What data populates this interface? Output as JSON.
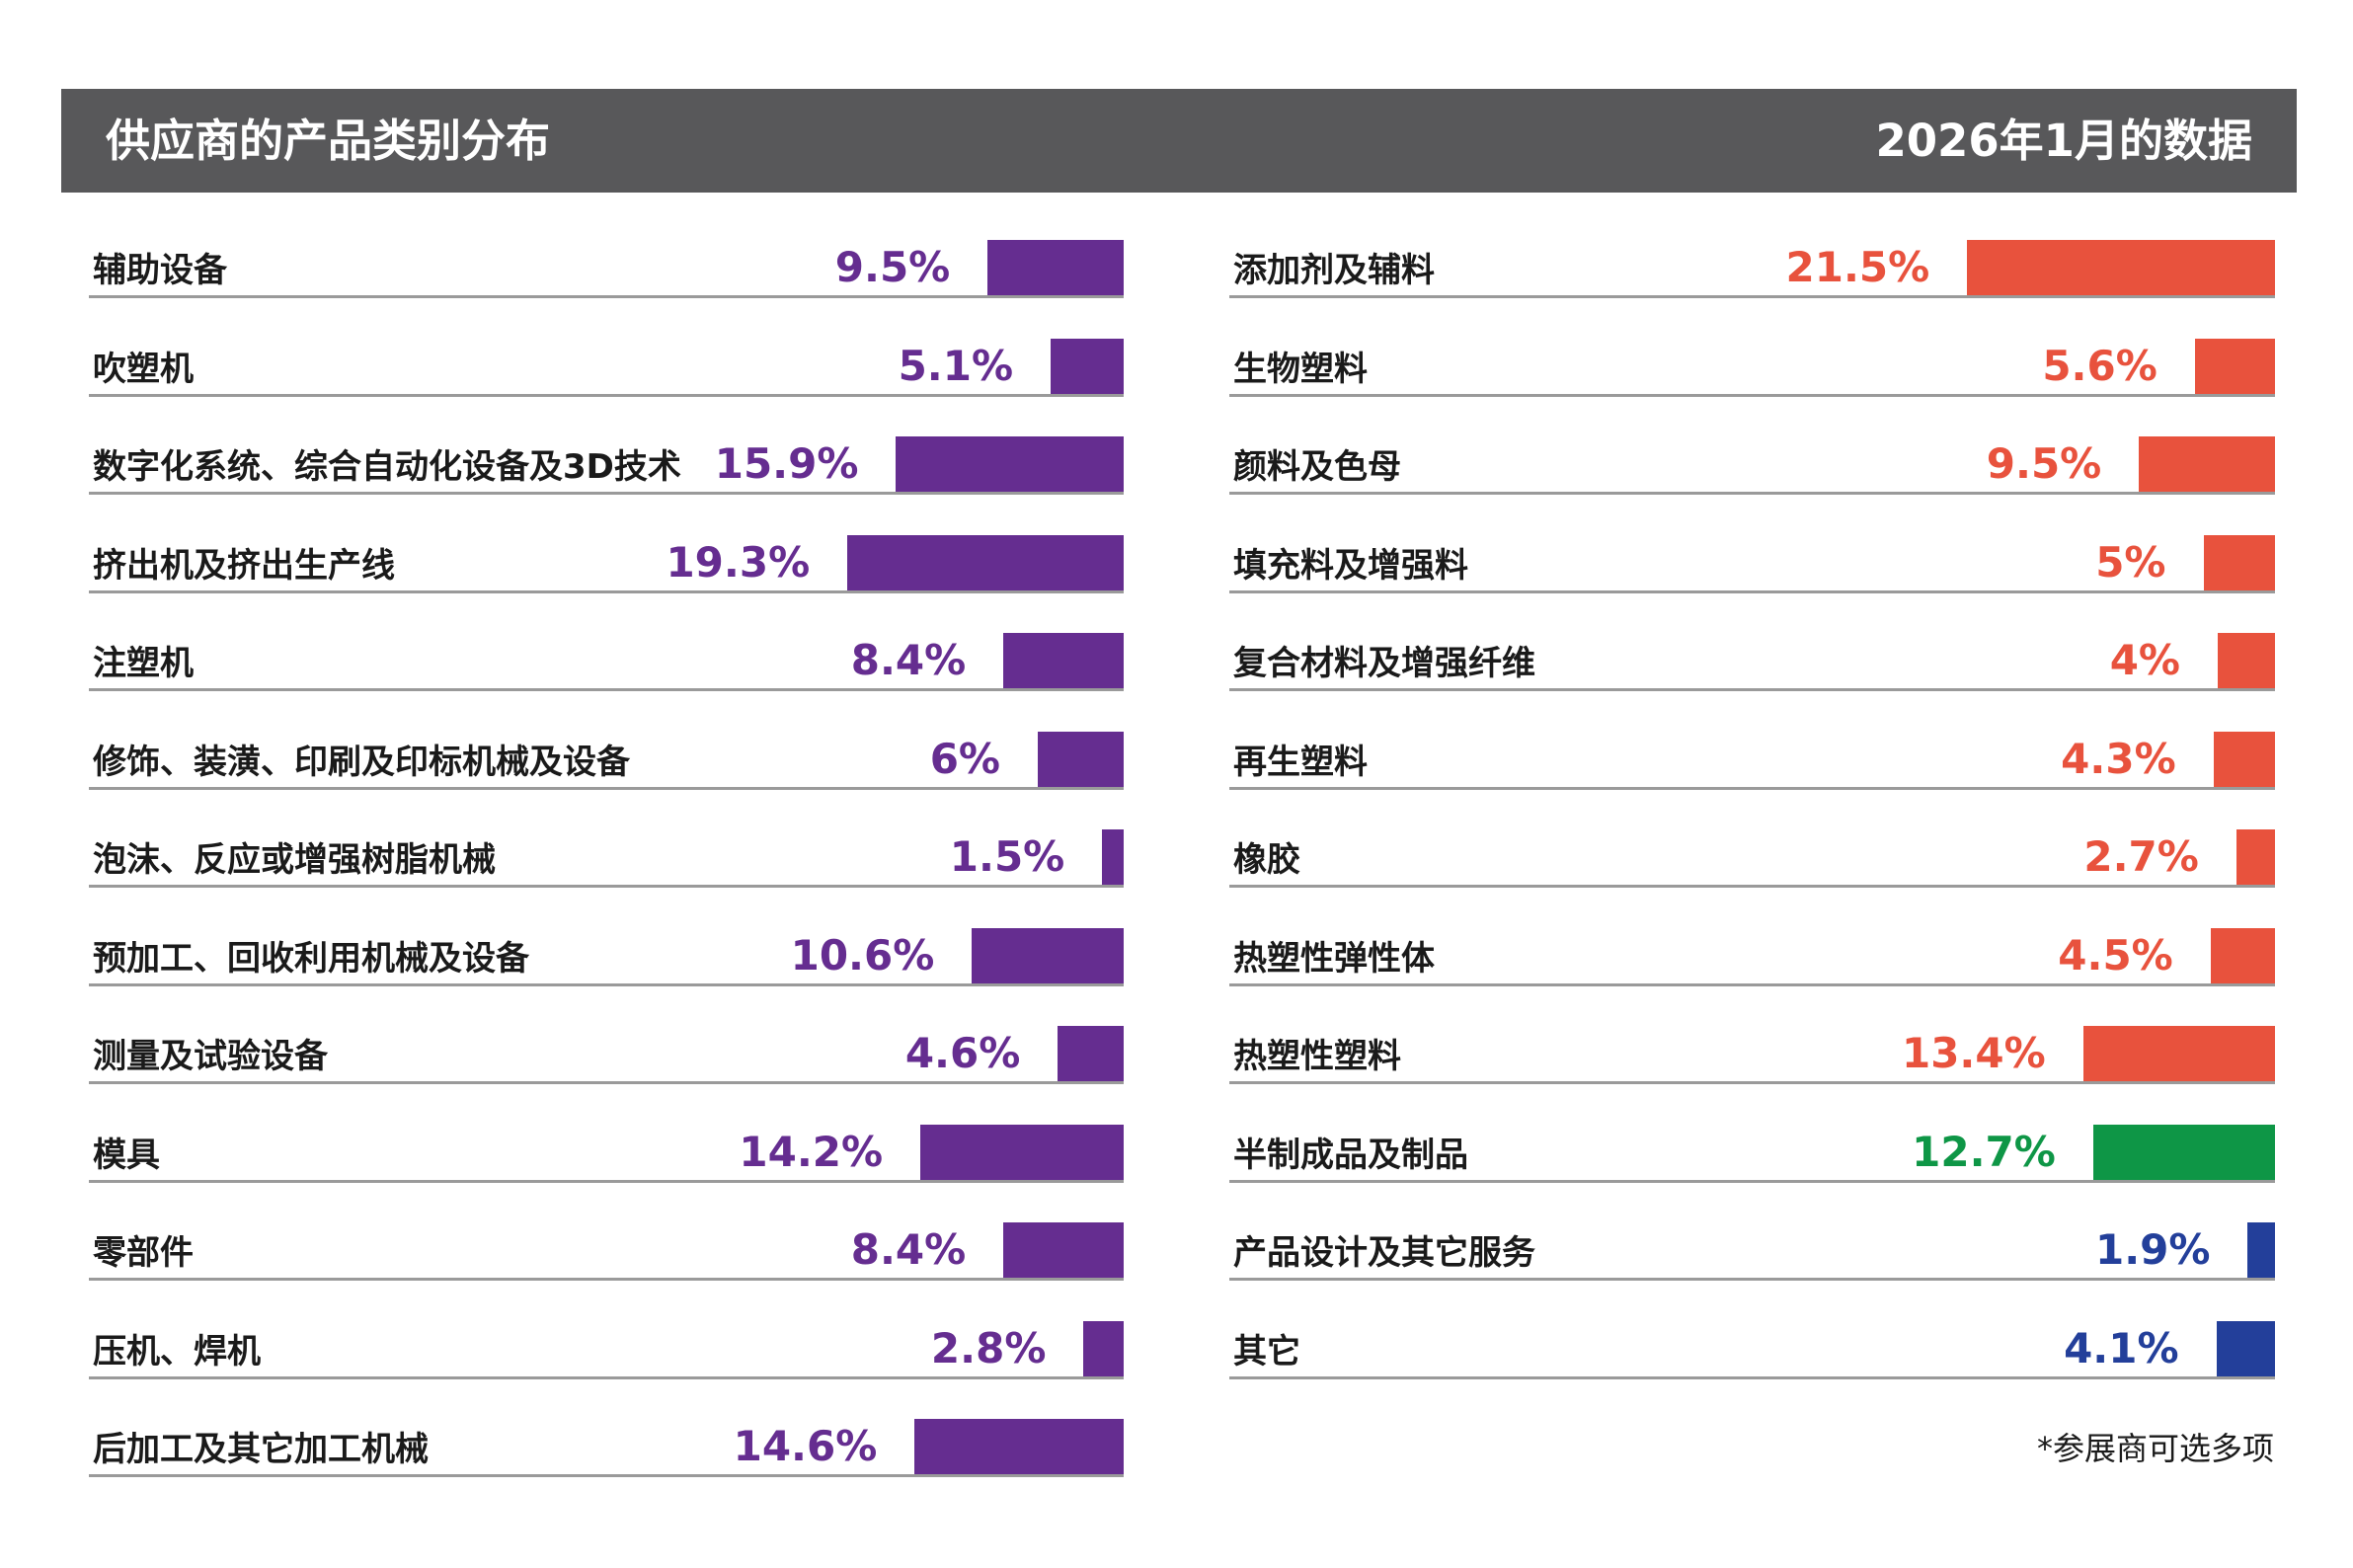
{
  "header": {
    "title": "供应商的产品类别分布",
    "date": "2026年1月的数据"
  },
  "footnote": "*参展商可选多项",
  "colors": {
    "purple": "#652d90",
    "red": "#e8523d",
    "green": "#0e9646",
    "blue": "#233f9a"
  },
  "chart_data": [
    {
      "type": "bar",
      "title": "供应商的产品类别分布",
      "orientation": "horizontal",
      "unit": "%",
      "categories": [
        "辅助设备",
        "吹塑机",
        "数字化系统、综合自动化设备及3D技术",
        "挤出机及挤出生产线",
        "注塑机",
        "修饰、装潢、印刷及印标机械及设备",
        "泡沫、反应或增强树脂机械",
        "预加工、回收利用机械及设备",
        "测量及试验设备",
        "模具",
        "零部件",
        "压机、焊机",
        "后加工及其它加工机械"
      ],
      "values": [
        9.5,
        5.1,
        15.9,
        19.3,
        8.4,
        6,
        1.5,
        10.6,
        4.6,
        14.2,
        8.4,
        2.8,
        14.6
      ],
      "labels": [
        "9.5%",
        "5.1%",
        "15.9%",
        "19.3%",
        "8.4%",
        "6%",
        "1.5%",
        "10.6%",
        "4.6%",
        "14.2%",
        "8.4%",
        "2.8%",
        "14.6%"
      ],
      "colors": [
        "purple",
        "purple",
        "purple",
        "purple",
        "purple",
        "purple",
        "purple",
        "purple",
        "purple",
        "purple",
        "purple",
        "purple",
        "purple"
      ]
    },
    {
      "type": "bar",
      "title": "供应商的产品类别分布",
      "orientation": "horizontal",
      "unit": "%",
      "categories": [
        "添加剂及辅料",
        "生物塑料",
        "颜料及色母",
        "填充料及增强料",
        "复合材料及增强纤维",
        "再生塑料",
        "橡胶",
        "热塑性弹性体",
        "热塑性塑料",
        "半制成品及制品",
        "产品设计及其它服务",
        "其它"
      ],
      "values": [
        21.5,
        5.6,
        9.5,
        5,
        4,
        4.3,
        2.7,
        4.5,
        13.4,
        12.7,
        1.9,
        4.1
      ],
      "labels": [
        "21.5%",
        "5.6%",
        "9.5%",
        "5%",
        "4%",
        "4.3%",
        "2.7%",
        "4.5%",
        "13.4%",
        "12.7%",
        "1.9%",
        "4.1%"
      ],
      "colors": [
        "red",
        "red",
        "red",
        "red",
        "red",
        "red",
        "red",
        "red",
        "red",
        "green",
        "blue",
        "blue"
      ]
    }
  ]
}
